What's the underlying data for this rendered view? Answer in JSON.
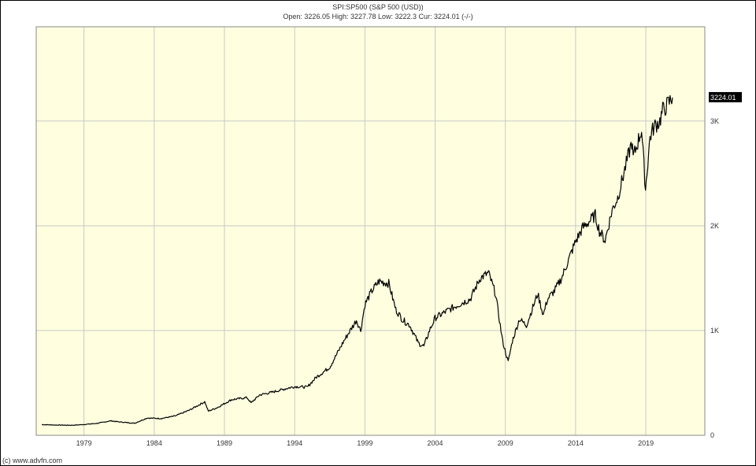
{
  "header": {
    "title": "SPI:SP500 (S&P 500 (USD))",
    "ohlc": "Open: 3226.05 High: 3227.78 Low: 3222.3 Cur: 3224.01 (-/-)"
  },
  "footer": {
    "copyright": "(c) www.advfn.com"
  },
  "current_price_label": "3224.01",
  "colors": {
    "plot_background": "#ffffe0",
    "grid": "#c8c8c8",
    "line": "#000000",
    "price_tag_bg": "#000000",
    "price_tag_text": "#ffffff"
  },
  "chart_data": {
    "type": "line",
    "title": "SPI:SP500 (S&P 500 (USD))",
    "xlabel": "",
    "ylabel": "",
    "x_ticks": [
      "1979",
      "1984",
      "1989",
      "1994",
      "1999",
      "2004",
      "2009",
      "2014",
      "2019"
    ],
    "y_ticks": [
      "0",
      "1K",
      "2K",
      "3K"
    ],
    "y_tick_values": [
      0,
      1000,
      2000,
      3000
    ],
    "xlim": [
      1975.6,
      2023.2
    ],
    "ylim": [
      0,
      3900
    ],
    "grid": true,
    "legend": "none",
    "current_value": 3224.01,
    "series": [
      {
        "x": [
          1976.0,
          1977.0,
          1978.2,
          1979.0,
          1980.0,
          1980.9,
          1981.5,
          1982.6,
          1983.5,
          1984.5,
          1985.5,
          1986.5,
          1987.6,
          1987.85,
          1988.5,
          1989.5,
          1990.6,
          1990.9,
          1991.5,
          1992.5,
          1993.5,
          1994.0,
          1994.9,
          1995.5,
          1996.5,
          1997.5,
          1998.4,
          1998.7,
          1999.0,
          1999.5,
          2000.0,
          2000.7,
          2001.2,
          2001.7,
          2002.2,
          2002.8,
          2003.2,
          2003.6,
          2004.0,
          2005.0,
          2006.0,
          2006.5,
          2007.2,
          2007.8,
          2008.3,
          2008.8,
          2009.2,
          2009.5,
          2010.0,
          2010.5,
          2011.3,
          2011.7,
          2012.0,
          2012.5,
          2013.0,
          2014.0,
          2014.5,
          2015.4,
          2015.7,
          2016.1,
          2016.6,
          2017.0,
          2018.0,
          2018.1,
          2018.7,
          2018.98,
          2019.3,
          2019.6,
          2020.0,
          2020.2,
          2020.5,
          2020.9
        ],
        "y": [
          102,
          98,
          96,
          103,
          115,
          138,
          128,
          115,
          165,
          160,
          185,
          240,
          320,
          230,
          265,
          340,
          360,
          310,
          385,
          415,
          450,
          465,
          460,
          550,
          650,
          900,
          1100,
          1000,
          1250,
          1380,
          1470,
          1450,
          1200,
          1100,
          1050,
          880,
          850,
          1000,
          1120,
          1200,
          1270,
          1300,
          1500,
          1550,
          1350,
          900,
          700,
          900,
          1110,
          1050,
          1350,
          1150,
          1300,
          1380,
          1500,
          1850,
          1980,
          2100,
          1950,
          1860,
          2150,
          2270,
          2800,
          2650,
          2920,
          2350,
          2850,
          2950,
          3000,
          3100,
          3150,
          3224.01
        ]
      }
    ]
  }
}
